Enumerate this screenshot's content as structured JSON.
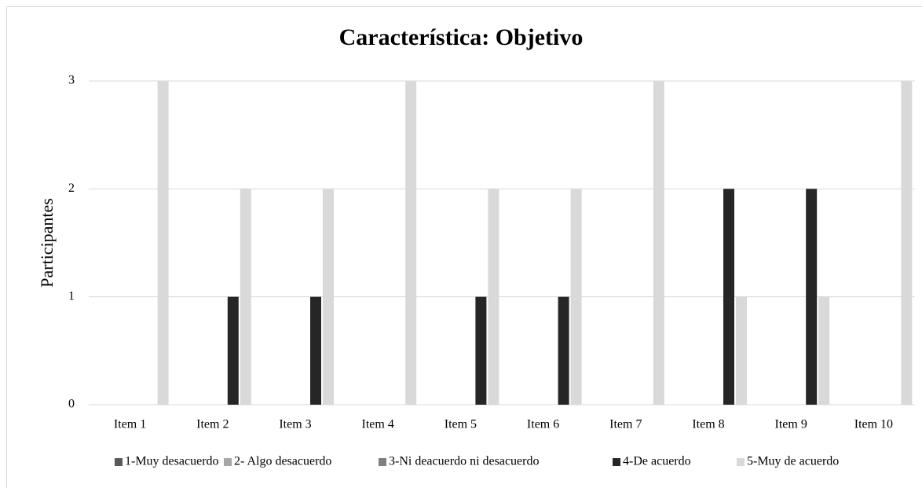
{
  "chart_data": {
    "type": "bar",
    "title": "Característica: Objetivo",
    "y_label": "Participantes",
    "categories": [
      "Item 1",
      "Item 2",
      "Item 3",
      "Item 4",
      "Item 5",
      "Item 6",
      "Item 7",
      "Item 8",
      "Item 9",
      "Item 10"
    ],
    "series": [
      {
        "name": "1-Muy desacuerdo",
        "color": "#595959",
        "values": [
          0,
          0,
          0,
          0,
          0,
          0,
          0,
          0,
          0,
          0
        ]
      },
      {
        "name": "2- Algo desacuerdo",
        "color": "#a6a6a6",
        "values": [
          0,
          0,
          0,
          0,
          0,
          0,
          0,
          0,
          0,
          0
        ]
      },
      {
        "name": "3-Ni deacuerdo ni desacuerdo",
        "color": "#7f7f7f",
        "values": [
          0,
          0,
          0,
          0,
          0,
          0,
          0,
          0,
          0,
          0
        ]
      },
      {
        "name": "4-De acuerdo",
        "color": "#262626",
        "values": [
          0,
          1,
          1,
          0,
          1,
          1,
          0,
          2,
          2,
          0
        ]
      },
      {
        "name": "5-Muy de acuerdo",
        "color": "#d9d9d9",
        "values": [
          3,
          2,
          2,
          3,
          2,
          2,
          3,
          1,
          1,
          3
        ]
      }
    ],
    "ylim": [
      0,
      3
    ],
    "yticks": [
      0,
      1,
      2,
      3
    ],
    "grid": true,
    "legend": "bottom"
  }
}
